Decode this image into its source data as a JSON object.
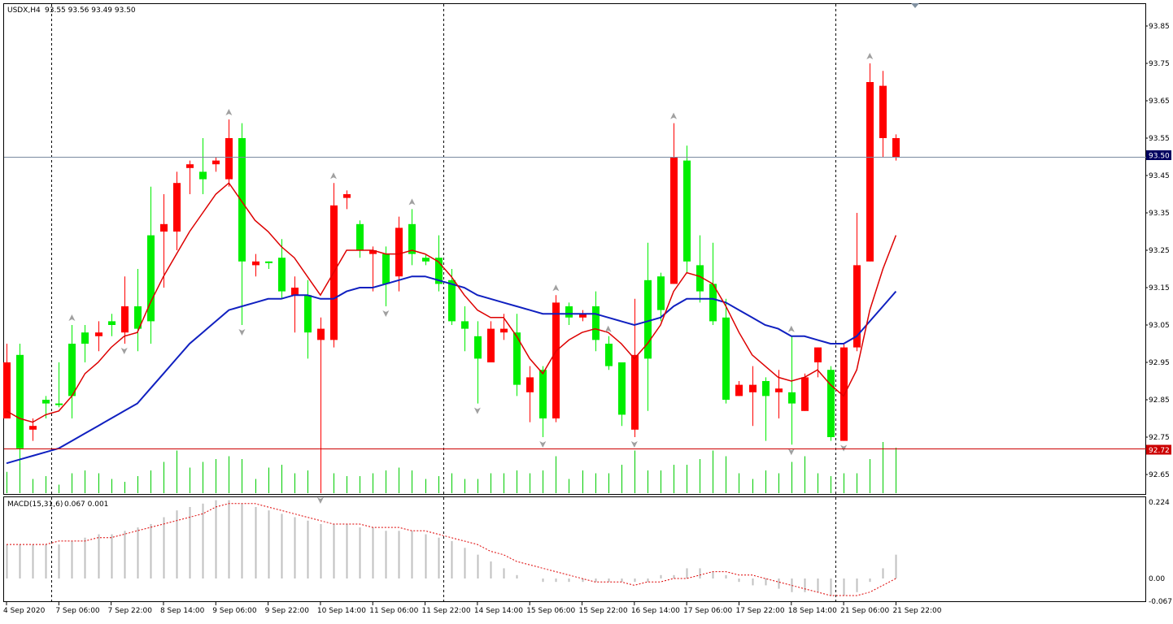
{
  "header": {
    "symbol_label": "USDX,H4",
    "ohlc_label": "93.55 93.56 93.49 93.50",
    "macd_label": "MACD(15,31,6)",
    "macd_values_label": "0.067 0.001"
  },
  "price_tags": {
    "bid": "93.50",
    "line": "92.72"
  },
  "colors": {
    "bull": "#00ee00",
    "bear": "#ff0000",
    "ma_fast": "#dd0000",
    "ma_slow": "#1020c0",
    "bid_line": "#7a8aa0",
    "hline": "#cc0000",
    "volume": "#00cc00",
    "histogram": "#c0c0c0",
    "signal": "#dd0000",
    "bid_tag_bg": "#000060",
    "line_tag_bg": "#cc0000"
  },
  "chart_data": [
    {
      "type": "candlestick",
      "symbol": "USDX",
      "timeframe": "H4",
      "y_ticks": [
        "93.85",
        "93.75",
        "93.65",
        "93.55",
        "93.45",
        "93.35",
        "93.25",
        "93.15",
        "93.05",
        "92.95",
        "92.85",
        "92.75",
        "92.65"
      ],
      "ylim": [
        92.6,
        93.9
      ],
      "x_tick_labels": [
        {
          "i": 0,
          "label": "4 Sep 2020"
        },
        {
          "i": 4,
          "label": "7 Sep 06:00"
        },
        {
          "i": 8,
          "label": "7 Sep 22:00"
        },
        {
          "i": 12,
          "label": "8 Sep 14:00"
        },
        {
          "i": 16,
          "label": "9 Sep 06:00"
        },
        {
          "i": 20,
          "label": "9 Sep 22:00"
        },
        {
          "i": 24,
          "label": "10 Sep 14:00"
        },
        {
          "i": 28,
          "label": "11 Sep 06:00"
        },
        {
          "i": 32,
          "label": "11 Sep 22:00"
        },
        {
          "i": 36,
          "label": "14 Sep 14:00"
        },
        {
          "i": 40,
          "label": "15 Sep 06:00"
        },
        {
          "i": 44,
          "label": "15 Sep 22:00"
        },
        {
          "i": 48,
          "label": "16 Sep 14:00"
        },
        {
          "i": 52,
          "label": "17 Sep 06:00"
        },
        {
          "i": 56,
          "label": "17 Sep 22:00"
        },
        {
          "i": 60,
          "label": "18 Sep 14:00"
        },
        {
          "i": 64,
          "label": "21 Sep 06:00"
        },
        {
          "i": 68,
          "label": "21 Sep 22:00"
        }
      ],
      "period_separators": [
        3,
        33,
        63
      ],
      "candles": [
        [
          92.95,
          93.0,
          92.8,
          92.8
        ],
        [
          92.72,
          93.0,
          92.68,
          92.97
        ],
        [
          92.78,
          92.8,
          92.74,
          92.77
        ],
        [
          92.84,
          92.86,
          92.8,
          92.85
        ],
        [
          92.84,
          92.95,
          92.83,
          92.84
        ],
        [
          92.86,
          93.05,
          92.8,
          93.0
        ],
        [
          93.0,
          93.05,
          92.95,
          93.03
        ],
        [
          93.03,
          93.06,
          92.98,
          93.02
        ],
        [
          93.05,
          93.08,
          93.02,
          93.06
        ],
        [
          93.1,
          93.18,
          93.0,
          93.03
        ],
        [
          93.04,
          93.2,
          92.98,
          93.1
        ],
        [
          93.06,
          93.42,
          93.0,
          93.29
        ],
        [
          93.32,
          93.4,
          93.15,
          93.3
        ],
        [
          93.43,
          93.46,
          93.25,
          93.3
        ],
        [
          93.48,
          93.49,
          93.4,
          93.47
        ],
        [
          93.44,
          93.55,
          93.4,
          93.46
        ],
        [
          93.49,
          93.5,
          93.46,
          93.48
        ],
        [
          93.55,
          93.6,
          93.42,
          93.44
        ],
        [
          93.22,
          93.59,
          93.05,
          93.55
        ],
        [
          93.22,
          93.24,
          93.18,
          93.21
        ],
        [
          93.22,
          93.22,
          93.2,
          93.22
        ],
        [
          93.14,
          93.28,
          93.12,
          93.23
        ],
        [
          93.15,
          93.18,
          93.03,
          93.13
        ],
        [
          93.03,
          93.17,
          92.96,
          93.13
        ],
        [
          93.04,
          93.07,
          92.6,
          93.01
        ],
        [
          93.37,
          93.43,
          92.99,
          93.01
        ],
        [
          93.4,
          93.41,
          93.36,
          93.39
        ],
        [
          93.25,
          93.33,
          93.23,
          93.32
        ],
        [
          93.25,
          93.26,
          93.14,
          93.24
        ],
        [
          93.16,
          93.26,
          93.1,
          93.24
        ],
        [
          93.31,
          93.34,
          93.14,
          93.18
        ],
        [
          93.24,
          93.36,
          93.21,
          93.32
        ],
        [
          93.22,
          93.24,
          93.21,
          93.23
        ],
        [
          93.16,
          93.29,
          93.14,
          93.23
        ],
        [
          93.06,
          93.2,
          93.05,
          93.17
        ],
        [
          93.04,
          93.1,
          92.98,
          93.06
        ],
        [
          92.96,
          93.06,
          92.84,
          93.02
        ],
        [
          93.04,
          93.06,
          92.95,
          92.95
        ],
        [
          93.04,
          93.08,
          93.01,
          93.03
        ],
        [
          92.89,
          93.08,
          92.86,
          93.03
        ],
        [
          92.91,
          92.94,
          92.79,
          92.87
        ],
        [
          92.8,
          92.94,
          92.75,
          92.93
        ],
        [
          93.11,
          93.13,
          92.79,
          92.8
        ],
        [
          93.07,
          93.11,
          93.05,
          93.1
        ],
        [
          93.08,
          93.09,
          93.06,
          93.07
        ],
        [
          93.01,
          93.14,
          92.98,
          93.1
        ],
        [
          92.94,
          93.02,
          92.93,
          93.0
        ],
        [
          92.81,
          92.95,
          92.78,
          92.95
        ],
        [
          92.97,
          93.12,
          92.75,
          92.77
        ],
        [
          92.96,
          93.27,
          92.82,
          93.17
        ],
        [
          93.09,
          93.19,
          93.06,
          93.18
        ],
        [
          93.5,
          93.59,
          93.16,
          93.16
        ],
        [
          93.22,
          93.53,
          93.19,
          93.49
        ],
        [
          93.14,
          93.29,
          93.11,
          93.21
        ],
        [
          93.06,
          93.27,
          93.05,
          93.16
        ],
        [
          92.85,
          93.12,
          92.84,
          93.07
        ],
        [
          92.89,
          92.9,
          92.86,
          92.86
        ],
        [
          92.89,
          92.94,
          92.78,
          92.87
        ],
        [
          92.86,
          92.91,
          92.74,
          92.9
        ],
        [
          92.88,
          92.93,
          92.8,
          92.87
        ],
        [
          92.84,
          93.02,
          92.73,
          92.87
        ],
        [
          92.91,
          92.92,
          92.82,
          92.82
        ],
        [
          92.99,
          92.99,
          92.91,
          92.95
        ],
        [
          92.75,
          92.94,
          92.74,
          92.93
        ],
        [
          92.99,
          93.0,
          92.74,
          92.74
        ],
        [
          93.21,
          93.35,
          92.98,
          92.99
        ],
        [
          93.7,
          93.75,
          93.22,
          93.22
        ],
        [
          93.69,
          93.73,
          93.5,
          93.55
        ],
        [
          93.55,
          93.56,
          93.49,
          93.5
        ]
      ],
      "ma_fast": [
        92.82,
        92.8,
        92.79,
        92.81,
        92.82,
        92.86,
        92.92,
        92.95,
        92.99,
        93.02,
        93.03,
        93.11,
        93.18,
        93.24,
        93.3,
        93.35,
        93.4,
        93.43,
        93.38,
        93.33,
        93.3,
        93.26,
        93.23,
        93.18,
        93.13,
        93.19,
        93.25,
        93.25,
        93.25,
        93.24,
        93.24,
        93.25,
        93.24,
        93.22,
        93.18,
        93.13,
        93.09,
        93.07,
        93.07,
        93.02,
        92.96,
        92.92,
        92.98,
        93.01,
        93.03,
        93.04,
        93.03,
        93.0,
        92.96,
        93.0,
        93.05,
        93.14,
        93.19,
        93.18,
        93.16,
        93.1,
        93.03,
        92.97,
        92.94,
        92.91,
        92.9,
        92.91,
        92.93,
        92.89,
        92.86,
        92.93,
        93.09,
        93.2,
        93.29
      ],
      "ma_slow": [
        92.68,
        92.69,
        92.7,
        92.71,
        92.72,
        92.74,
        92.76,
        92.78,
        92.8,
        92.82,
        92.84,
        92.88,
        92.92,
        92.96,
        93.0,
        93.03,
        93.06,
        93.09,
        93.1,
        93.11,
        93.12,
        93.12,
        93.13,
        93.13,
        93.12,
        93.12,
        93.14,
        93.15,
        93.15,
        93.16,
        93.17,
        93.18,
        93.18,
        93.17,
        93.16,
        93.15,
        93.13,
        93.12,
        93.11,
        93.1,
        93.09,
        93.08,
        93.08,
        93.08,
        93.08,
        93.08,
        93.07,
        93.06,
        93.05,
        93.06,
        93.07,
        93.1,
        93.12,
        93.12,
        93.12,
        93.11,
        93.09,
        93.07,
        93.05,
        93.04,
        93.02,
        93.02,
        93.01,
        93.0,
        93.0,
        93.02,
        93.06,
        93.1,
        93.14
      ],
      "fractal_up": [
        5,
        17,
        25,
        31,
        42,
        46,
        51,
        60,
        66
      ],
      "fractal_down": [
        9,
        18,
        24,
        29,
        36,
        41,
        48,
        60,
        64
      ],
      "volume": [
        15,
        28,
        10,
        12,
        6,
        14,
        16,
        14,
        10,
        8,
        12,
        16,
        22,
        30,
        18,
        22,
        24,
        26,
        24,
        10,
        18,
        20,
        14,
        16,
        18,
        14,
        12,
        12,
        14,
        16,
        18,
        16,
        10,
        12,
        14,
        10,
        10,
        14,
        14,
        16,
        14,
        16,
        26,
        10,
        16,
        14,
        14,
        20,
        30,
        16,
        16,
        20,
        20,
        24,
        30,
        26,
        14,
        10,
        16,
        14,
        22,
        26,
        14,
        12,
        14,
        14,
        24,
        36,
        32
      ],
      "bid": 93.5,
      "hline": 92.72
    },
    {
      "type": "macd",
      "params": "15,31,6",
      "y_ticks": [
        "0.224",
        "0.00",
        "-0.067"
      ],
      "ylim": [
        -0.08,
        0.24
      ],
      "histogram": [
        0.1,
        0.1,
        0.1,
        0.1,
        0.1,
        0.11,
        0.12,
        0.13,
        0.13,
        0.14,
        0.15,
        0.16,
        0.18,
        0.2,
        0.21,
        0.22,
        0.23,
        0.23,
        0.22,
        0.21,
        0.2,
        0.19,
        0.18,
        0.17,
        0.16,
        0.16,
        0.16,
        0.15,
        0.15,
        0.14,
        0.14,
        0.14,
        0.13,
        0.12,
        0.11,
        0.09,
        0.07,
        0.05,
        0.03,
        0.01,
        0.0,
        -0.01,
        -0.01,
        -0.01,
        -0.01,
        -0.01,
        -0.01,
        -0.01,
        -0.01,
        -0.01,
        0.01,
        0.01,
        0.03,
        0.03,
        0.02,
        0.01,
        -0.01,
        -0.02,
        -0.02,
        -0.03,
        -0.04,
        -0.04,
        -0.04,
        -0.05,
        -0.05,
        -0.04,
        -0.01,
        0.03,
        0.07
      ],
      "signal": [
        0.1,
        0.1,
        0.1,
        0.1,
        0.11,
        0.11,
        0.11,
        0.12,
        0.12,
        0.13,
        0.14,
        0.15,
        0.16,
        0.17,
        0.18,
        0.19,
        0.21,
        0.22,
        0.22,
        0.22,
        0.21,
        0.2,
        0.19,
        0.18,
        0.17,
        0.16,
        0.16,
        0.16,
        0.15,
        0.15,
        0.15,
        0.14,
        0.14,
        0.13,
        0.12,
        0.11,
        0.1,
        0.08,
        0.07,
        0.05,
        0.04,
        0.03,
        0.02,
        0.01,
        0.0,
        -0.01,
        -0.01,
        -0.01,
        -0.02,
        -0.01,
        -0.01,
        0.0,
        0.0,
        0.01,
        0.02,
        0.02,
        0.01,
        0.01,
        0.0,
        -0.01,
        -0.02,
        -0.03,
        -0.04,
        -0.05,
        -0.05,
        -0.05,
        -0.04,
        -0.02,
        0.0
      ]
    }
  ]
}
